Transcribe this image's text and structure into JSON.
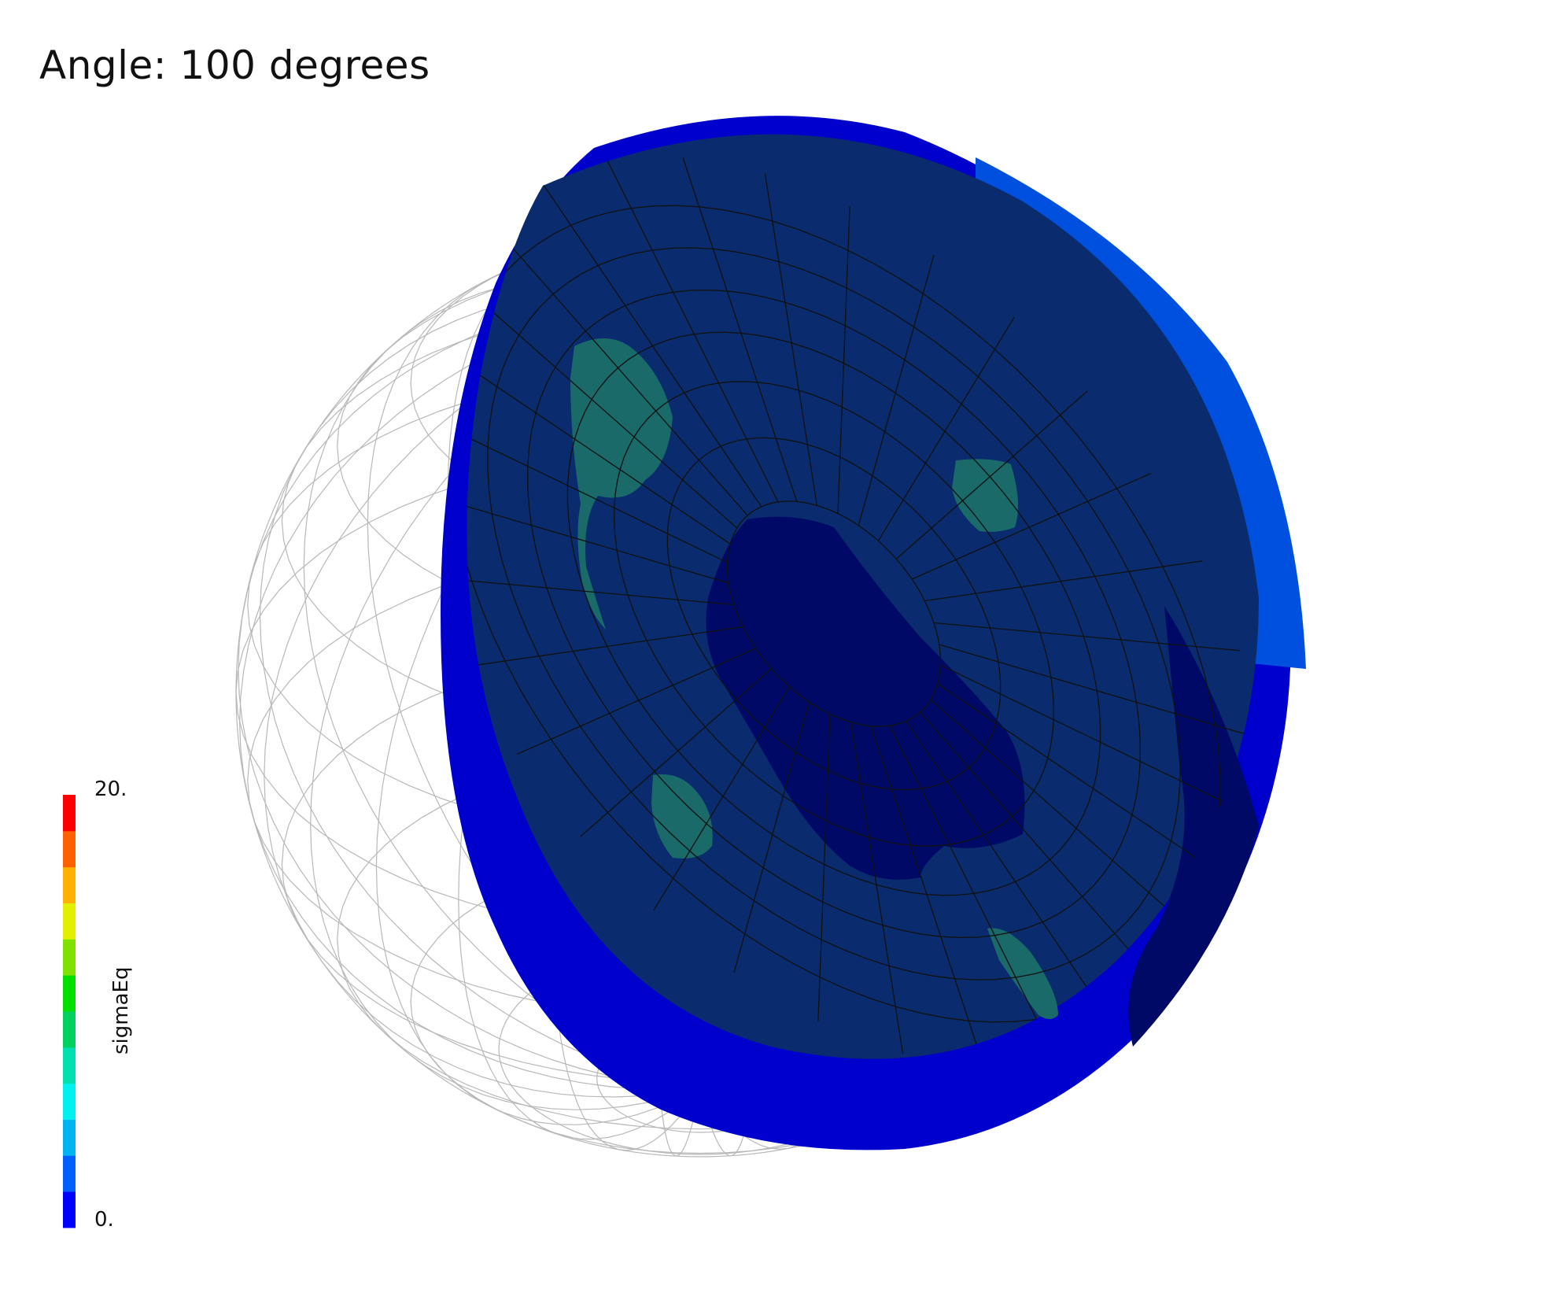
{
  "title": "Angle: 100 degrees",
  "colorbar": {
    "label": "sigmaEq",
    "max_label": "20.",
    "min_label": "0.",
    "range": [
      0,
      20
    ],
    "bins": 12,
    "colors": [
      "#0000ff",
      "#0060ff",
      "#00b4f0",
      "#00f0f0",
      "#00e0b0",
      "#00d060",
      "#00e000",
      "#80e000",
      "#e0f000",
      "#ffb000",
      "#ff6000",
      "#ff0000"
    ]
  },
  "scene": {
    "wireframe_color": "#b8b8b8",
    "disk_face_color": "#0a2c6e",
    "disk_rim_color": "#0000cc",
    "disk_rim_light_color": "#0050e0",
    "low_stress_region_color": "#000a66",
    "hotspot_color": "#1a6a6a",
    "mesh_line_color": "#111111"
  }
}
